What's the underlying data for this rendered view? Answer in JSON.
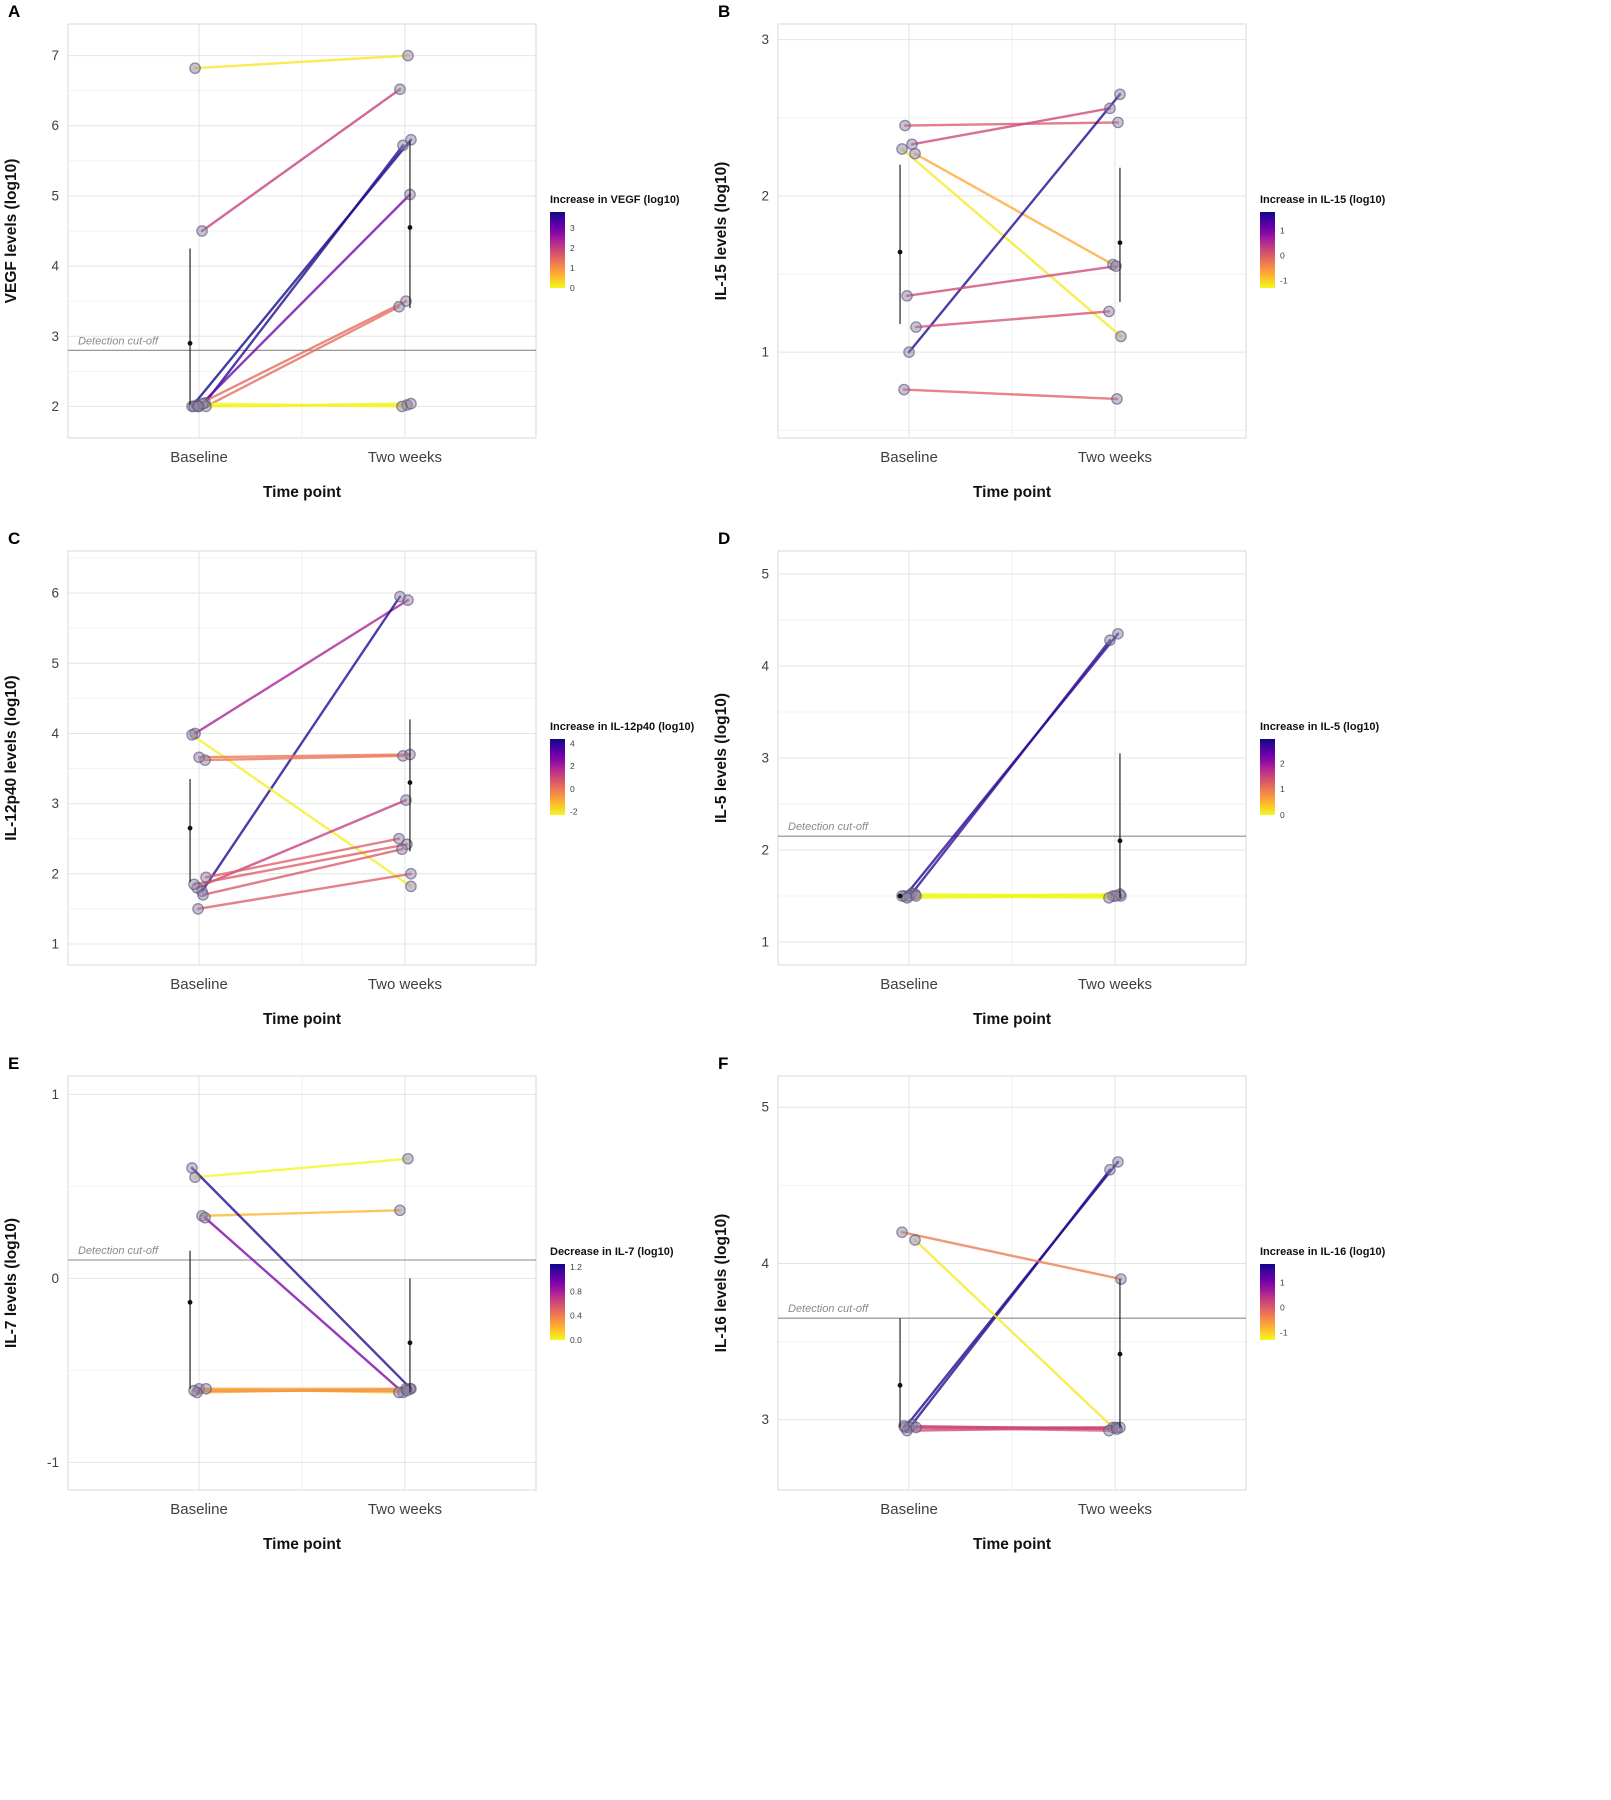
{
  "figure": {
    "description": "Six-panel paired cytokine level slope charts, baseline vs two weeks",
    "panel_letters": [
      "A",
      "B",
      "C",
      "D",
      "E",
      "F"
    ]
  },
  "colors": {
    "colormap_low": "#F0F921",
    "colormap_mid": "#CC4778",
    "colormap_high": "#0D0887",
    "point_fill": "#8F86A8",
    "point_stroke": "#564D72",
    "summary": "#111111",
    "cutoff_line": "#8A8A8A",
    "cutoff_text": "#8A8A8A",
    "grid_major": "#E4E4E4",
    "grid_minor": "#F2F2F2",
    "axis_text": "#404040",
    "axis_title": "#111111",
    "panel_border": "#D8D8D8"
  },
  "chart_data": [
    {
      "id": "A",
      "type": "line",
      "panel_label": "A",
      "ylabel": "VEGF levels (log10)",
      "xlabel": "Time point",
      "categories": [
        "Baseline",
        "Two weeks"
      ],
      "yticks": [
        2,
        3,
        4,
        5,
        6,
        7
      ],
      "ylim": [
        1.55,
        7.45
      ],
      "grid": true,
      "value_mode": "increase",
      "legend": {
        "title": "Increase in VEGF (log10)",
        "position": "right",
        "ticks": [
          "3",
          "2",
          "1",
          "0"
        ],
        "range": [
          0,
          3.8
        ]
      },
      "detection_cutoff": {
        "y": 2.8,
        "label": "Detection cut-off"
      },
      "pairs": [
        [
          6.82,
          7.0
        ],
        [
          4.5,
          6.52
        ],
        [
          2.0,
          5.8
        ],
        [
          2.05,
          5.72
        ],
        [
          2.0,
          5.02
        ],
        [
          2.02,
          3.5
        ],
        [
          2.0,
          3.42
        ],
        [
          2.0,
          2.02
        ],
        [
          2.04,
          2.0
        ],
        [
          2.0,
          2.04
        ]
      ],
      "summary": [
        {
          "at": "Baseline",
          "mean": 2.9,
          "lo": 2.02,
          "hi": 4.25
        },
        {
          "at": "Two weeks",
          "mean": 4.55,
          "lo": 3.4,
          "hi": 5.78
        }
      ]
    },
    {
      "id": "B",
      "type": "line",
      "panel_label": "B",
      "ylabel": "IL-15 levels (log10)",
      "xlabel": "Time point",
      "categories": [
        "Baseline",
        "Two weeks"
      ],
      "yticks": [
        1,
        2,
        3
      ],
      "ylim": [
        0.45,
        3.1
      ],
      "grid": true,
      "value_mode": "increase",
      "legend": {
        "title": "Increase in IL-15 (log10)",
        "position": "right",
        "ticks": [
          "1",
          "0",
          "-1"
        ],
        "range": [
          -1.3,
          1.75
        ]
      },
      "detection_cutoff": null,
      "pairs": [
        [
          2.45,
          2.47
        ],
        [
          2.33,
          2.56
        ],
        [
          2.3,
          1.1
        ],
        [
          2.27,
          1.56
        ],
        [
          1.0,
          2.65
        ],
        [
          1.36,
          1.55
        ],
        [
          1.16,
          1.26
        ],
        [
          0.76,
          0.7
        ]
      ],
      "summary": [
        {
          "at": "Baseline",
          "mean": 1.64,
          "lo": 1.18,
          "hi": 2.2
        },
        {
          "at": "Two weeks",
          "mean": 1.7,
          "lo": 1.32,
          "hi": 2.18
        }
      ]
    },
    {
      "id": "C",
      "type": "line",
      "panel_label": "C",
      "ylabel": "IL-12p40 levels (log10)",
      "xlabel": "Time point",
      "categories": [
        "Baseline",
        "Two weeks"
      ],
      "yticks": [
        1,
        2,
        3,
        4,
        5,
        6
      ],
      "ylim": [
        0.7,
        6.6
      ],
      "grid": true,
      "value_mode": "increase",
      "legend": {
        "title": "Increase in IL-12p40 (log10)",
        "position": "right",
        "ticks": [
          "4",
          "2",
          "0",
          "-2"
        ],
        "range": [
          -2.3,
          4.4
        ]
      },
      "detection_cutoff": null,
      "pairs": [
        [
          4.0,
          5.9
        ],
        [
          1.75,
          5.95
        ],
        [
          3.98,
          1.82
        ],
        [
          3.62,
          3.68
        ],
        [
          3.66,
          3.7
        ],
        [
          1.8,
          3.05
        ],
        [
          1.95,
          2.5
        ],
        [
          1.85,
          2.42
        ],
        [
          1.7,
          2.35
        ],
        [
          1.5,
          2.0
        ]
      ],
      "summary": [
        {
          "at": "Baseline",
          "mean": 2.65,
          "lo": 1.88,
          "hi": 3.35
        },
        {
          "at": "Two weeks",
          "mean": 3.3,
          "lo": 2.32,
          "hi": 4.2
        }
      ]
    },
    {
      "id": "D",
      "type": "line",
      "panel_label": "D",
      "ylabel": "IL-5 levels (log10)",
      "xlabel": "Time point",
      "categories": [
        "Baseline",
        "Two weeks"
      ],
      "yticks": [
        1,
        2,
        3,
        4,
        5
      ],
      "ylim": [
        0.75,
        5.25
      ],
      "grid": true,
      "value_mode": "increase",
      "legend": {
        "title": "Increase in IL-5 (log10)",
        "position": "right",
        "ticks": [
          "2",
          "1",
          "0"
        ],
        "range": [
          0,
          2.95
        ]
      },
      "detection_cutoff": {
        "y": 2.15,
        "label": "Detection cut-off"
      },
      "pairs": [
        [
          1.5,
          4.35
        ],
        [
          1.53,
          4.28
        ],
        [
          1.5,
          1.5
        ],
        [
          1.52,
          1.5
        ],
        [
          1.5,
          1.52
        ],
        [
          1.48,
          1.5
        ],
        [
          1.5,
          1.48
        ]
      ],
      "summary": [
        {
          "at": "Baseline",
          "mean": 1.5,
          "lo": 1.5,
          "hi": 1.5
        },
        {
          "at": "Two weeks",
          "mean": 2.1,
          "lo": 1.48,
          "hi": 3.05
        }
      ]
    },
    {
      "id": "E",
      "type": "line",
      "panel_label": "E",
      "ylabel": "IL-7 levels (log10)",
      "xlabel": "Time point",
      "categories": [
        "Baseline",
        "Two weeks"
      ],
      "yticks": [
        -1,
        0,
        1
      ],
      "ylim": [
        -1.15,
        1.1
      ],
      "grid": true,
      "value_mode": "decrease",
      "legend": {
        "title": "Decrease in IL-7 (log10)",
        "position": "right",
        "ticks": [
          "1.2",
          "0.8",
          "0.4",
          "0.0"
        ],
        "range": [
          0,
          1.25
        ]
      },
      "detection_cutoff": {
        "y": 0.1,
        "label": "Detection cut-off"
      },
      "pairs": [
        [
          0.55,
          0.65
        ],
        [
          0.34,
          0.37,
          0.2
        ],
        [
          0.6,
          -0.6
        ],
        [
          0.33,
          -0.62
        ],
        [
          -0.6,
          -0.6,
          0.3
        ],
        [
          -0.62,
          -0.6,
          0.25
        ],
        [
          -0.6,
          -0.62,
          0.2
        ],
        [
          -0.61,
          -0.61,
          0.35
        ]
      ],
      "summary": [
        {
          "at": "Baseline",
          "mean": -0.13,
          "lo": -0.6,
          "hi": 0.15
        },
        {
          "at": "Two weeks",
          "mean": -0.35,
          "lo": -0.62,
          "hi": 0.0
        }
      ]
    },
    {
      "id": "F",
      "type": "line",
      "panel_label": "F",
      "ylabel": "IL-16 levels (log10)",
      "xlabel": "Time point",
      "categories": [
        "Baseline",
        "Two weeks"
      ],
      "yticks": [
        3,
        4,
        5
      ],
      "ylim": [
        2.55,
        5.2
      ],
      "grid": true,
      "value_mode": "increase",
      "legend": {
        "title": "Increase in IL-16 (log10)",
        "position": "right",
        "ticks": [
          "1",
          "0",
          "-1"
        ],
        "range": [
          -1.3,
          1.75
        ]
      },
      "detection_cutoff": {
        "y": 3.65,
        "label": "Detection cut-off"
      },
      "pairs": [
        [
          2.95,
          4.65
        ],
        [
          2.97,
          4.6
        ],
        [
          4.2,
          3.9
        ],
        [
          4.15,
          2.95
        ],
        [
          2.95,
          2.95,
          0.3
        ],
        [
          2.93,
          2.95,
          0.2
        ],
        [
          2.95,
          2.93,
          0.1
        ],
        [
          2.96,
          2.94,
          0.25
        ]
      ],
      "summary": [
        {
          "at": "Baseline",
          "mean": 3.22,
          "lo": 2.95,
          "hi": 3.65
        },
        {
          "at": "Two weeks",
          "mean": 3.42,
          "lo": 2.95,
          "hi": 3.9
        }
      ]
    }
  ]
}
